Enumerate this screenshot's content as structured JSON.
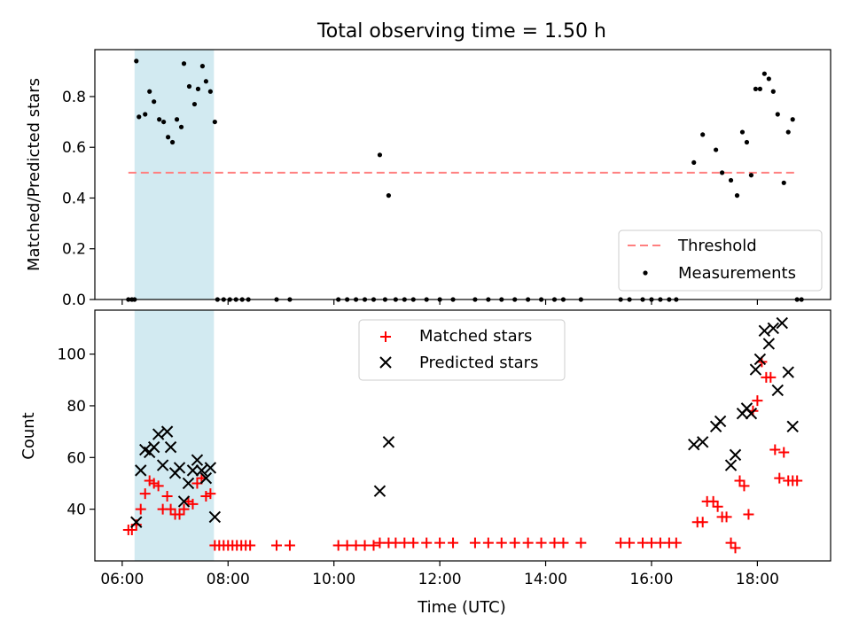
{
  "chart_data": [
    {
      "type": "scatter",
      "title": "Total observing time = 1.50 h",
      "ylabel": "Matched/Predicted stars",
      "xlabel": "",
      "xlim": [
        "05:29",
        "19:23"
      ],
      "ylim": [
        0,
        0.985
      ],
      "yticks": [
        "0.0",
        "0.2",
        "0.4",
        "0.6",
        "0.8"
      ],
      "threshold": {
        "name": "Threshold",
        "value": 0.5,
        "x_range": [
          "06:07",
          "18:45"
        ],
        "color": "#ff7f7f"
      },
      "shaded_interval": {
        "start": "06:14",
        "end": "07:44",
        "color": "#add8e6"
      },
      "legend": {
        "position": "lower right",
        "entries": [
          "Threshold",
          "Measurements"
        ]
      },
      "series": [
        {
          "name": "Measurements",
          "color": "#000000",
          "points": [
            [
              "06:07",
              0.0
            ],
            [
              "06:11",
              0.0
            ],
            [
              "06:14",
              0.0
            ],
            [
              "06:16",
              0.94
            ],
            [
              "06:19",
              0.72
            ],
            [
              "06:26",
              0.73
            ],
            [
              "06:31",
              0.82
            ],
            [
              "06:36",
              0.78
            ],
            [
              "06:42",
              0.71
            ],
            [
              "06:47",
              0.7
            ],
            [
              "06:52",
              0.64
            ],
            [
              "06:57",
              0.62
            ],
            [
              "07:02",
              0.71
            ],
            [
              "07:07",
              0.68
            ],
            [
              "07:10",
              0.93
            ],
            [
              "07:16",
              0.84
            ],
            [
              "07:22",
              0.77
            ],
            [
              "07:26",
              0.83
            ],
            [
              "07:31",
              0.92
            ],
            [
              "07:35",
              0.86
            ],
            [
              "07:40",
              0.82
            ],
            [
              "07:45",
              0.7
            ],
            [
              "07:48",
              0.0
            ],
            [
              "07:55",
              0.0
            ],
            [
              "08:02",
              0.0
            ],
            [
              "08:09",
              0.0
            ],
            [
              "08:16",
              0.0
            ],
            [
              "08:23",
              0.0
            ],
            [
              "08:55",
              0.0
            ],
            [
              "09:10",
              0.0
            ],
            [
              "10:05",
              0.0
            ],
            [
              "10:15",
              0.0
            ],
            [
              "10:25",
              0.0
            ],
            [
              "10:35",
              0.0
            ],
            [
              "10:45",
              0.0
            ],
            [
              "10:52",
              0.57
            ],
            [
              "10:58",
              0.0
            ],
            [
              "11:02",
              0.41
            ],
            [
              "11:10",
              0.0
            ],
            [
              "11:20",
              0.0
            ],
            [
              "11:30",
              0.0
            ],
            [
              "11:45",
              0.0
            ],
            [
              "12:00",
              0.0
            ],
            [
              "12:15",
              0.0
            ],
            [
              "12:40",
              0.0
            ],
            [
              "12:55",
              0.0
            ],
            [
              "13:10",
              0.0
            ],
            [
              "13:25",
              0.0
            ],
            [
              "13:40",
              0.0
            ],
            [
              "13:55",
              0.0
            ],
            [
              "14:10",
              0.0
            ],
            [
              "14:20",
              0.0
            ],
            [
              "14:40",
              0.0
            ],
            [
              "15:25",
              0.0
            ],
            [
              "15:35",
              0.0
            ],
            [
              "15:50",
              0.0
            ],
            [
              "16:00",
              0.0
            ],
            [
              "16:10",
              0.0
            ],
            [
              "16:20",
              0.0
            ],
            [
              "16:28",
              0.0
            ],
            [
              "16:48",
              0.54
            ],
            [
              "16:58",
              0.65
            ],
            [
              "17:13",
              0.59
            ],
            [
              "17:20",
              0.5
            ],
            [
              "17:30",
              0.47
            ],
            [
              "17:37",
              0.41
            ],
            [
              "17:43",
              0.66
            ],
            [
              "17:48",
              0.62
            ],
            [
              "17:53",
              0.49
            ],
            [
              "17:58",
              0.83
            ],
            [
              "18:03",
              0.83
            ],
            [
              "18:08",
              0.89
            ],
            [
              "18:13",
              0.87
            ],
            [
              "18:18",
              0.82
            ],
            [
              "18:23",
              0.73
            ],
            [
              "18:30",
              0.46
            ],
            [
              "18:35",
              0.66
            ],
            [
              "18:40",
              0.71
            ],
            [
              "18:45",
              0.0
            ],
            [
              "18:50",
              0.0
            ]
          ]
        }
      ]
    },
    {
      "type": "scatter",
      "title": "",
      "xlabel": "Time (UTC)",
      "ylabel": "Count",
      "xlim": [
        "05:29",
        "19:23"
      ],
      "ylim": [
        20,
        117
      ],
      "yticks": [
        "40",
        "60",
        "80",
        "100"
      ],
      "xticks": [
        "06:00",
        "08:00",
        "10:00",
        "12:00",
        "14:00",
        "16:00",
        "18:00"
      ],
      "shaded_interval": {
        "start": "06:14",
        "end": "07:44",
        "color": "#add8e6"
      },
      "legend": {
        "position": "upper center",
        "entries": [
          "Matched stars",
          "Predicted stars"
        ]
      },
      "series": [
        {
          "name": "Matched stars",
          "marker": "+",
          "color": "#ff0000",
          "points": [
            [
              "06:07",
              32
            ],
            [
              "06:11",
              32
            ],
            [
              "06:16",
              34
            ],
            [
              "06:21",
              40
            ],
            [
              "06:26",
              46
            ],
            [
              "06:31",
              51
            ],
            [
              "06:36",
              50
            ],
            [
              "06:41",
              49
            ],
            [
              "06:46",
              40
            ],
            [
              "06:51",
              45
            ],
            [
              "06:55",
              40
            ],
            [
              "07:00",
              38
            ],
            [
              "07:05",
              38
            ],
            [
              "07:10",
              40
            ],
            [
              "07:15",
              43
            ],
            [
              "07:20",
              42
            ],
            [
              "07:25",
              50
            ],
            [
              "07:30",
              52
            ],
            [
              "07:35",
              45
            ],
            [
              "07:40",
              46
            ],
            [
              "07:45",
              26
            ],
            [
              "07:50",
              26
            ],
            [
              "07:55",
              26
            ],
            [
              "08:00",
              26
            ],
            [
              "08:05",
              26
            ],
            [
              "08:10",
              26
            ],
            [
              "08:15",
              26
            ],
            [
              "08:20",
              26
            ],
            [
              "08:25",
              26
            ],
            [
              "08:55",
              26
            ],
            [
              "09:10",
              26
            ],
            [
              "10:05",
              26
            ],
            [
              "10:15",
              26
            ],
            [
              "10:25",
              26
            ],
            [
              "10:35",
              26
            ],
            [
              "10:45",
              26
            ],
            [
              "10:52",
              27
            ],
            [
              "11:02",
              27
            ],
            [
              "11:10",
              27
            ],
            [
              "11:20",
              27
            ],
            [
              "11:30",
              27
            ],
            [
              "11:45",
              27
            ],
            [
              "12:00",
              27
            ],
            [
              "12:15",
              27
            ],
            [
              "12:40",
              27
            ],
            [
              "12:55",
              27
            ],
            [
              "13:10",
              27
            ],
            [
              "13:25",
              27
            ],
            [
              "13:40",
              27
            ],
            [
              "13:55",
              27
            ],
            [
              "14:10",
              27
            ],
            [
              "14:20",
              27
            ],
            [
              "14:40",
              27
            ],
            [
              "15:25",
              27
            ],
            [
              "15:35",
              27
            ],
            [
              "15:50",
              27
            ],
            [
              "16:00",
              27
            ],
            [
              "16:10",
              27
            ],
            [
              "16:20",
              27
            ],
            [
              "16:28",
              27
            ],
            [
              "16:52",
              35
            ],
            [
              "16:58",
              35
            ],
            [
              "17:03",
              43
            ],
            [
              "17:10",
              43
            ],
            [
              "17:15",
              41
            ],
            [
              "17:20",
              37
            ],
            [
              "17:25",
              37
            ],
            [
              "17:30",
              27
            ],
            [
              "17:35",
              25
            ],
            [
              "17:40",
              51
            ],
            [
              "17:45",
              49
            ],
            [
              "17:50",
              38
            ],
            [
              "17:55",
              78
            ],
            [
              "18:00",
              82
            ],
            [
              "18:05",
              97
            ],
            [
              "18:10",
              91
            ],
            [
              "18:15",
              91
            ],
            [
              "18:20",
              63
            ],
            [
              "18:25",
              52
            ],
            [
              "18:30",
              62
            ],
            [
              "18:35",
              51
            ],
            [
              "18:40",
              51
            ],
            [
              "18:45",
              51
            ]
          ]
        },
        {
          "name": "Predicted stars",
          "marker": "x",
          "color": "#000000",
          "points": [
            [
              "06:16",
              35
            ],
            [
              "06:21",
              55
            ],
            [
              "06:26",
              63
            ],
            [
              "06:31",
              62
            ],
            [
              "06:36",
              64
            ],
            [
              "06:41",
              69
            ],
            [
              "06:46",
              57
            ],
            [
              "06:51",
              70
            ],
            [
              "06:55",
              64
            ],
            [
              "07:00",
              54
            ],
            [
              "07:05",
              56
            ],
            [
              "07:10",
              43
            ],
            [
              "07:15",
              50
            ],
            [
              "07:20",
              55
            ],
            [
              "07:25",
              59
            ],
            [
              "07:30",
              55
            ],
            [
              "07:35",
              52
            ],
            [
              "07:40",
              56
            ],
            [
              "07:45",
              37
            ],
            [
              "10:52",
              47
            ],
            [
              "11:02",
              66
            ],
            [
              "16:48",
              65
            ],
            [
              "16:58",
              66
            ],
            [
              "17:13",
              72
            ],
            [
              "17:18",
              74
            ],
            [
              "17:30",
              57
            ],
            [
              "17:35",
              61
            ],
            [
              "17:43",
              77
            ],
            [
              "17:48",
              79
            ],
            [
              "17:53",
              77
            ],
            [
              "17:58",
              94
            ],
            [
              "18:03",
              98
            ],
            [
              "18:08",
              109
            ],
            [
              "18:13",
              104
            ],
            [
              "18:18",
              110
            ],
            [
              "18:23",
              86
            ],
            [
              "18:28",
              112
            ],
            [
              "18:35",
              93
            ],
            [
              "18:40",
              72
            ]
          ]
        }
      ]
    }
  ]
}
